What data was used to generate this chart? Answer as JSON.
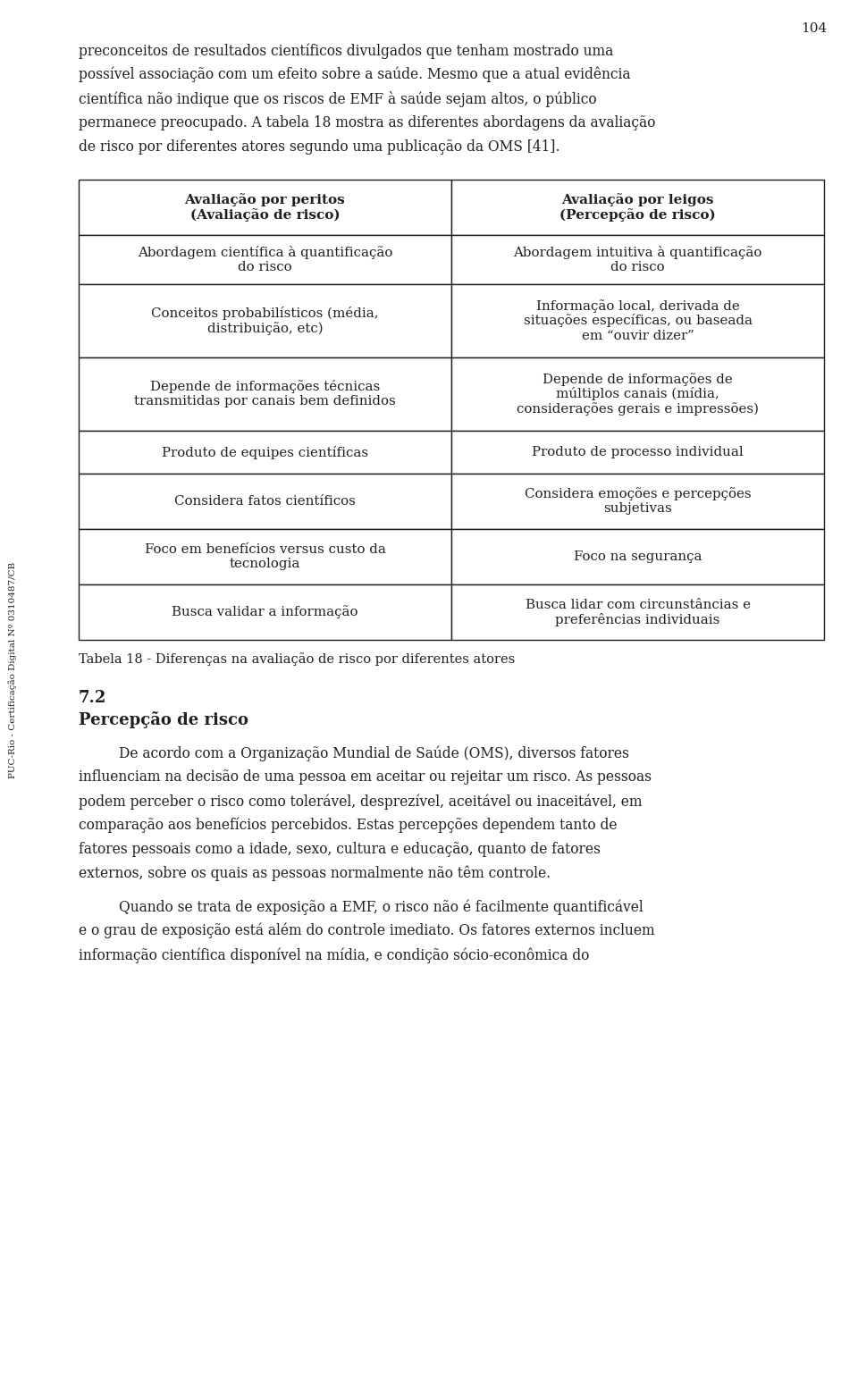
{
  "page_number": "104",
  "bg_color": "#ffffff",
  "text_color": "#231f20",
  "sidebar_text": "PUC-Rio - Certificação Digital Nº 0310487/CB",
  "paragraph1_lines": [
    "preconceitos de resultados científicos divulgados que tenham mostrado uma",
    "possível associação com um efeito sobre a saúde. Mesmo que a atual evidência",
    "científica não indique que os riscos de EMF à saúde sejam altos, o público",
    "permanece preocupado. A tabela 18 mostra as diferentes abordagens da avaliação",
    "de risco por diferentes atores segundo uma publicação da OMS [41]."
  ],
  "table_header_col1_line1": "Avaliação por peritos",
  "table_header_col1_line2": "(Avaliação de risco)",
  "table_header_col2_line1": "Avaliação por leigos",
  "table_header_col2_line2": "(Percepção de risco)",
  "table_rows": [
    {
      "col1_lines": [
        "Abordagem científica à quantificação",
        "do risco"
      ],
      "col2_lines": [
        "Abordagem intuitiva à quantificação",
        "do risco"
      ]
    },
    {
      "col1_lines": [
        "Conceitos probabilísticos (média,",
        "distribuição, etc)"
      ],
      "col2_lines": [
        "Informação local, derivada de",
        "situações específicas, ou baseada",
        "em “ouvir dizer”"
      ]
    },
    {
      "col1_lines": [
        "Depende de informações técnicas",
        "transmitidas por canais bem definidos"
      ],
      "col2_lines": [
        "Depende de informações de",
        "múltiplos canais (mídia,",
        "considerações gerais e impressões)"
      ]
    },
    {
      "col1_lines": [
        "Produto de equipes científicas"
      ],
      "col2_lines": [
        "Produto de processo individual"
      ]
    },
    {
      "col1_lines": [
        "Considera fatos científicos"
      ],
      "col2_lines": [
        "Considera emoções e percepções",
        "subjetivas"
      ]
    },
    {
      "col1_lines": [
        "Foco em benefícios versus custo da",
        "tecnologia"
      ],
      "col2_lines": [
        "Foco na segurança"
      ]
    },
    {
      "col1_lines": [
        "Busca validar a informação"
      ],
      "col2_lines": [
        "Busca lidar com circunstâncias e",
        "preferências individuais"
      ]
    }
  ],
  "table_caption": "Tabela 18 - Diferenças na avaliação de risco por diferentes atores",
  "section_number": "7.2",
  "section_title": "Percepção de risco",
  "paragraph2_lines": [
    "De acordo com a Organização Mundial de Saúde (OMS), diversos fatores",
    "influenciam na decisão de uma pessoa em aceitar ou rejeitar um risco. As pessoas",
    "podem perceber o risco como tolerável, desprezível, aceitável ou inaceitável, em",
    "comparação aos benefícios percebidos. Estas percepções dependem tanto de",
    "fatores pessoais como a idade, sexo, cultura e educação, quanto de fatores",
    "externos, sobre os quais as pessoas normalmente não têm controle."
  ],
  "paragraph3_lines": [
    "Quando se trata de exposição a EMF, o risco não é facilmente quantificável",
    "e o grau de exposição está além do controle imediato. Os fatores externos incluem",
    "informação científica disponível na mídia, e condição sócio-econômica do"
  ]
}
